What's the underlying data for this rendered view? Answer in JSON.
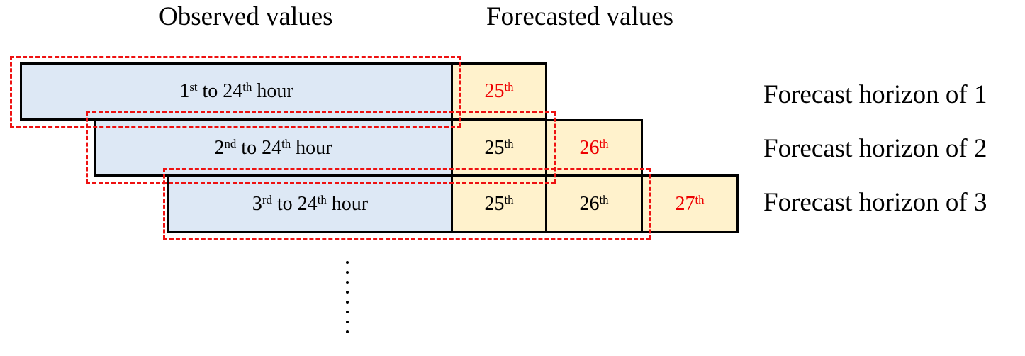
{
  "headers": {
    "observed": "Observed values",
    "forecasted": "Forecasted values"
  },
  "rows": [
    {
      "observed": {
        "ord_num": "1",
        "ord_suffix": "st",
        "to_num": "to 24",
        "to_suffix": "th",
        "unit": "hour"
      },
      "forecast_cells": [
        {
          "num": "25",
          "suffix": "th",
          "highlight": true
        }
      ],
      "horizon_label": "Forecast horizon of 1"
    },
    {
      "observed": {
        "ord_num": "2",
        "ord_suffix": "nd",
        "to_num": "to 24",
        "to_suffix": "th",
        "unit": "hour"
      },
      "forecast_cells": [
        {
          "num": "25",
          "suffix": "th",
          "highlight": false
        },
        {
          "num": "26",
          "suffix": "th",
          "highlight": true
        }
      ],
      "horizon_label": "Forecast horizon of 2"
    },
    {
      "observed": {
        "ord_num": "3",
        "ord_suffix": "rd",
        "to_num": "to 24",
        "to_suffix": "th",
        "unit": "hour"
      },
      "forecast_cells": [
        {
          "num": "25",
          "suffix": "th",
          "highlight": false
        },
        {
          "num": "26",
          "suffix": "th",
          "highlight": false
        },
        {
          "num": "27",
          "suffix": "th",
          "highlight": true
        }
      ],
      "horizon_label": "Forecast horizon of 3"
    }
  ],
  "colors": {
    "observed_fill": "#dde8f5",
    "forecast_fill": "#fff2cc",
    "highlight_text": "#ee0000",
    "window_outline": "#ee1111"
  }
}
